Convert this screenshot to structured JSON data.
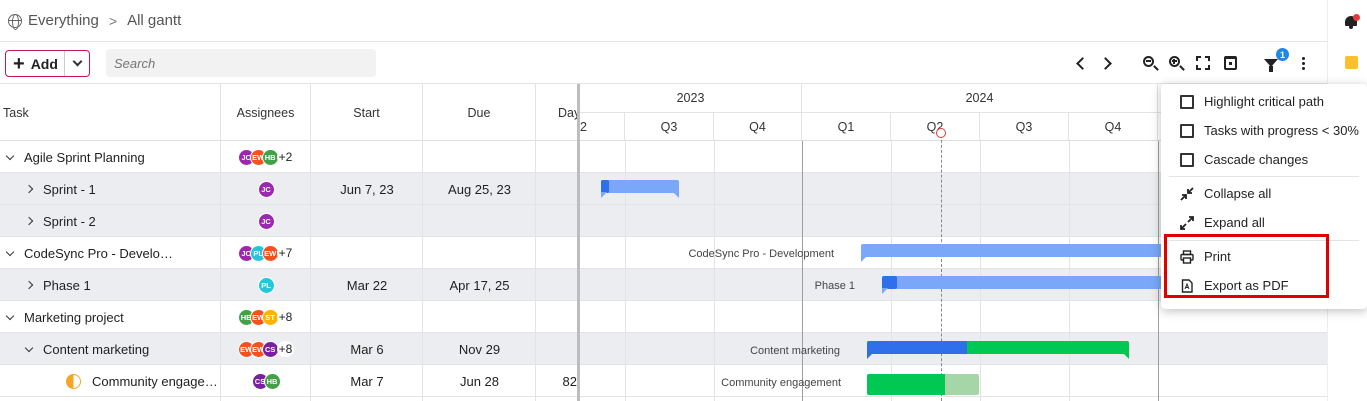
{
  "breadcrumb": {
    "root": "Everything",
    "current": "All gantt"
  },
  "toolbar": {
    "add_label": "Add",
    "search_placeholder": "Search",
    "filter_count": "1"
  },
  "columns": {
    "task": "Task",
    "assignees": "Assignees",
    "start": "Start",
    "due": "Due",
    "days": "Day"
  },
  "rows": [
    {
      "name": "Agile Sprint Planning",
      "start": "",
      "due": "",
      "days": "",
      "avatars": [
        "JC",
        "EW",
        "HB"
      ],
      "more": "+2"
    },
    {
      "name": "Sprint - 1",
      "start": "Jun 7, 23",
      "due": "Aug 25, 23",
      "days": "",
      "avatars": [
        "JC"
      ],
      "more": ""
    },
    {
      "name": "Sprint - 2",
      "start": "",
      "due": "",
      "days": "",
      "avatars": [
        "JC"
      ],
      "more": ""
    },
    {
      "name": "CodeSync Pro - Develo…",
      "start": "",
      "due": "",
      "days": "",
      "avatars": [
        "JC",
        "PL",
        "EW"
      ],
      "more": "+7"
    },
    {
      "name": "Phase 1",
      "start": "Mar 22",
      "due": "Apr 17, 25",
      "days": "",
      "avatars": [
        "PL"
      ],
      "more": ""
    },
    {
      "name": "Marketing project",
      "start": "",
      "due": "",
      "days": "",
      "avatars": [
        "HB",
        "EW",
        "ST"
      ],
      "more": "+8"
    },
    {
      "name": "Content marketing",
      "start": "Mar 6",
      "due": "Nov 29",
      "days": "",
      "avatars": [
        "EW",
        "EW",
        "CS"
      ],
      "more": "+8"
    },
    {
      "name": "Community engage…",
      "start": "Mar 7",
      "due": "Jun 28",
      "days": "82",
      "avatars": [
        "CS",
        "HB"
      ],
      "more": ""
    }
  ],
  "timeline": {
    "years": [
      "2023",
      "2024"
    ],
    "quarters": [
      "2",
      "Q3",
      "Q4",
      "Q1",
      "Q2",
      "Q3",
      "Q4"
    ],
    "bar_labels": {
      "codesync": "CodeSync Pro - Development",
      "phase1": "Phase 1",
      "content": "Content marketing",
      "community": "Community engagement"
    }
  },
  "menu": {
    "highlight_critical": "Highlight critical path",
    "tasks_progress": "Tasks with progress < 30%",
    "cascade": "Cascade changes",
    "collapse_all": "Collapse all",
    "expand_all": "Expand all",
    "print": "Print",
    "export_pdf": "Export as PDF"
  },
  "colors": {
    "avatar": {
      "JC": "#9c27b0",
      "EW": "#f4511e",
      "HB": "#43a047",
      "PL": "#26c6da",
      "ST": "#ffb300",
      "CS": "#7b1fa2"
    },
    "bar_blue": "#2f6fea",
    "bar_light": "#7aa7f7",
    "bar_green": "#00c853",
    "bar_green_light": "#a5d6a7",
    "add_border": "#c2185b",
    "highlight": "#e00000"
  }
}
